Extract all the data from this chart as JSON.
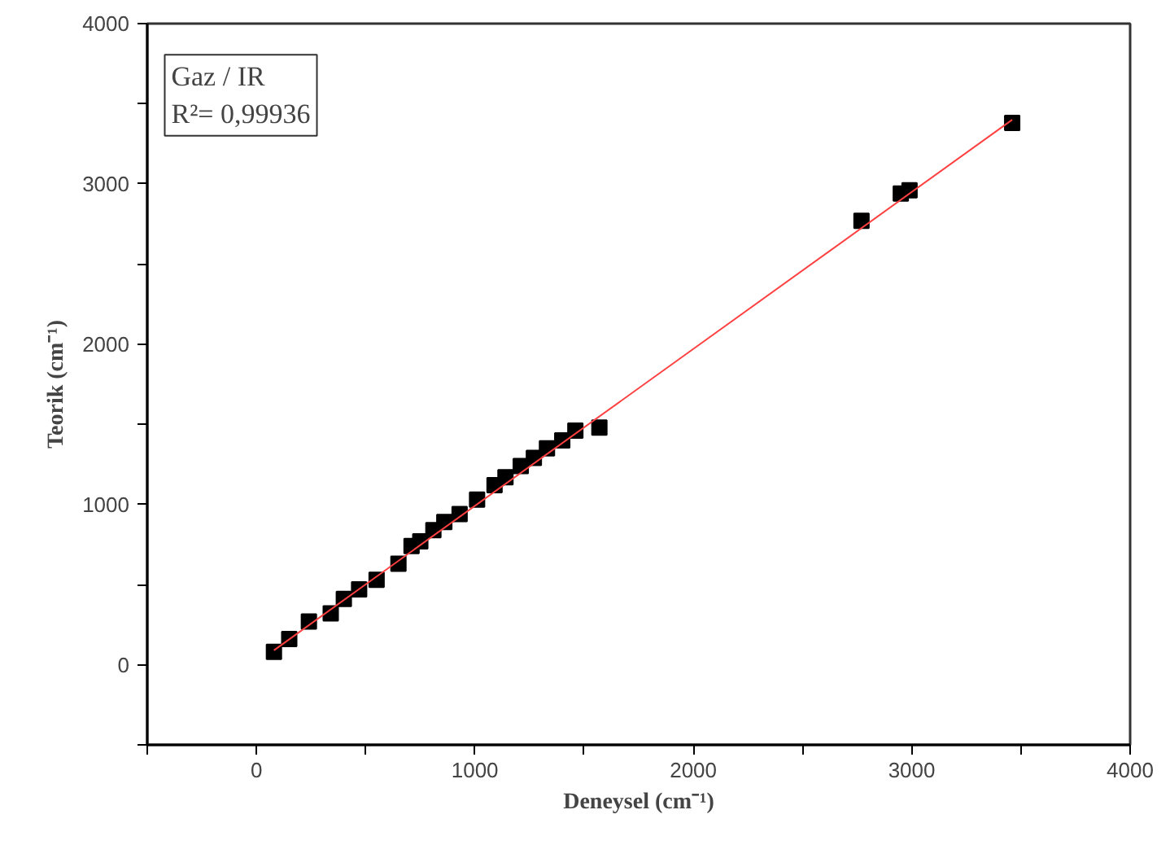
{
  "chart_data": {
    "type": "scatter",
    "xlabel": "Deneysel (cm⁻¹)",
    "ylabel": "Teorik (cm⁻¹)",
    "annotations": [
      "Gaz / IR\nR²= 0,99936"
    ],
    "xlim": [
      -500,
      4000
    ],
    "ylim": [
      -500,
      4000
    ],
    "xticks": [
      {
        "value": -500,
        "label": null
      },
      0,
      {
        "value": 500,
        "label": null
      },
      1000,
      {
        "value": 1500,
        "label": null
      },
      2000,
      {
        "value": 2500,
        "label": null
      },
      3000,
      {
        "value": 3500,
        "label": null
      },
      4000
    ],
    "yticks": [
      {
        "value": -500,
        "label": null
      },
      0,
      {
        "value": 500,
        "label": null
      },
      1000,
      {
        "value": 1500,
        "label": null
      },
      2000,
      {
        "value": 2500,
        "label": null
      },
      3000,
      {
        "value": 3500,
        "label": null
      },
      4000
    ],
    "grid": false,
    "series": [
      {
        "marker": "square",
        "color": "#000000",
        "x": [
          80,
          150,
          240,
          340,
          400,
          470,
          550,
          650,
          710,
          750,
          810,
          860,
          930,
          1010,
          1090,
          1140,
          1210,
          1270,
          1330,
          1400,
          1460,
          1570,
          2770,
          2950,
          2990,
          3460
        ],
        "values": [
          80,
          160,
          270,
          320,
          410,
          470,
          530,
          630,
          740,
          770,
          840,
          890,
          940,
          1030,
          1120,
          1170,
          1240,
          1290,
          1350,
          1400,
          1460,
          1480,
          2770,
          2940,
          2960,
          3380
        ]
      },
      {
        "type": "line",
        "marker": "none",
        "color": "#ff4040",
        "x": [
          80,
          3460
        ],
        "values": [
          90,
          3400
        ]
      }
    ]
  }
}
